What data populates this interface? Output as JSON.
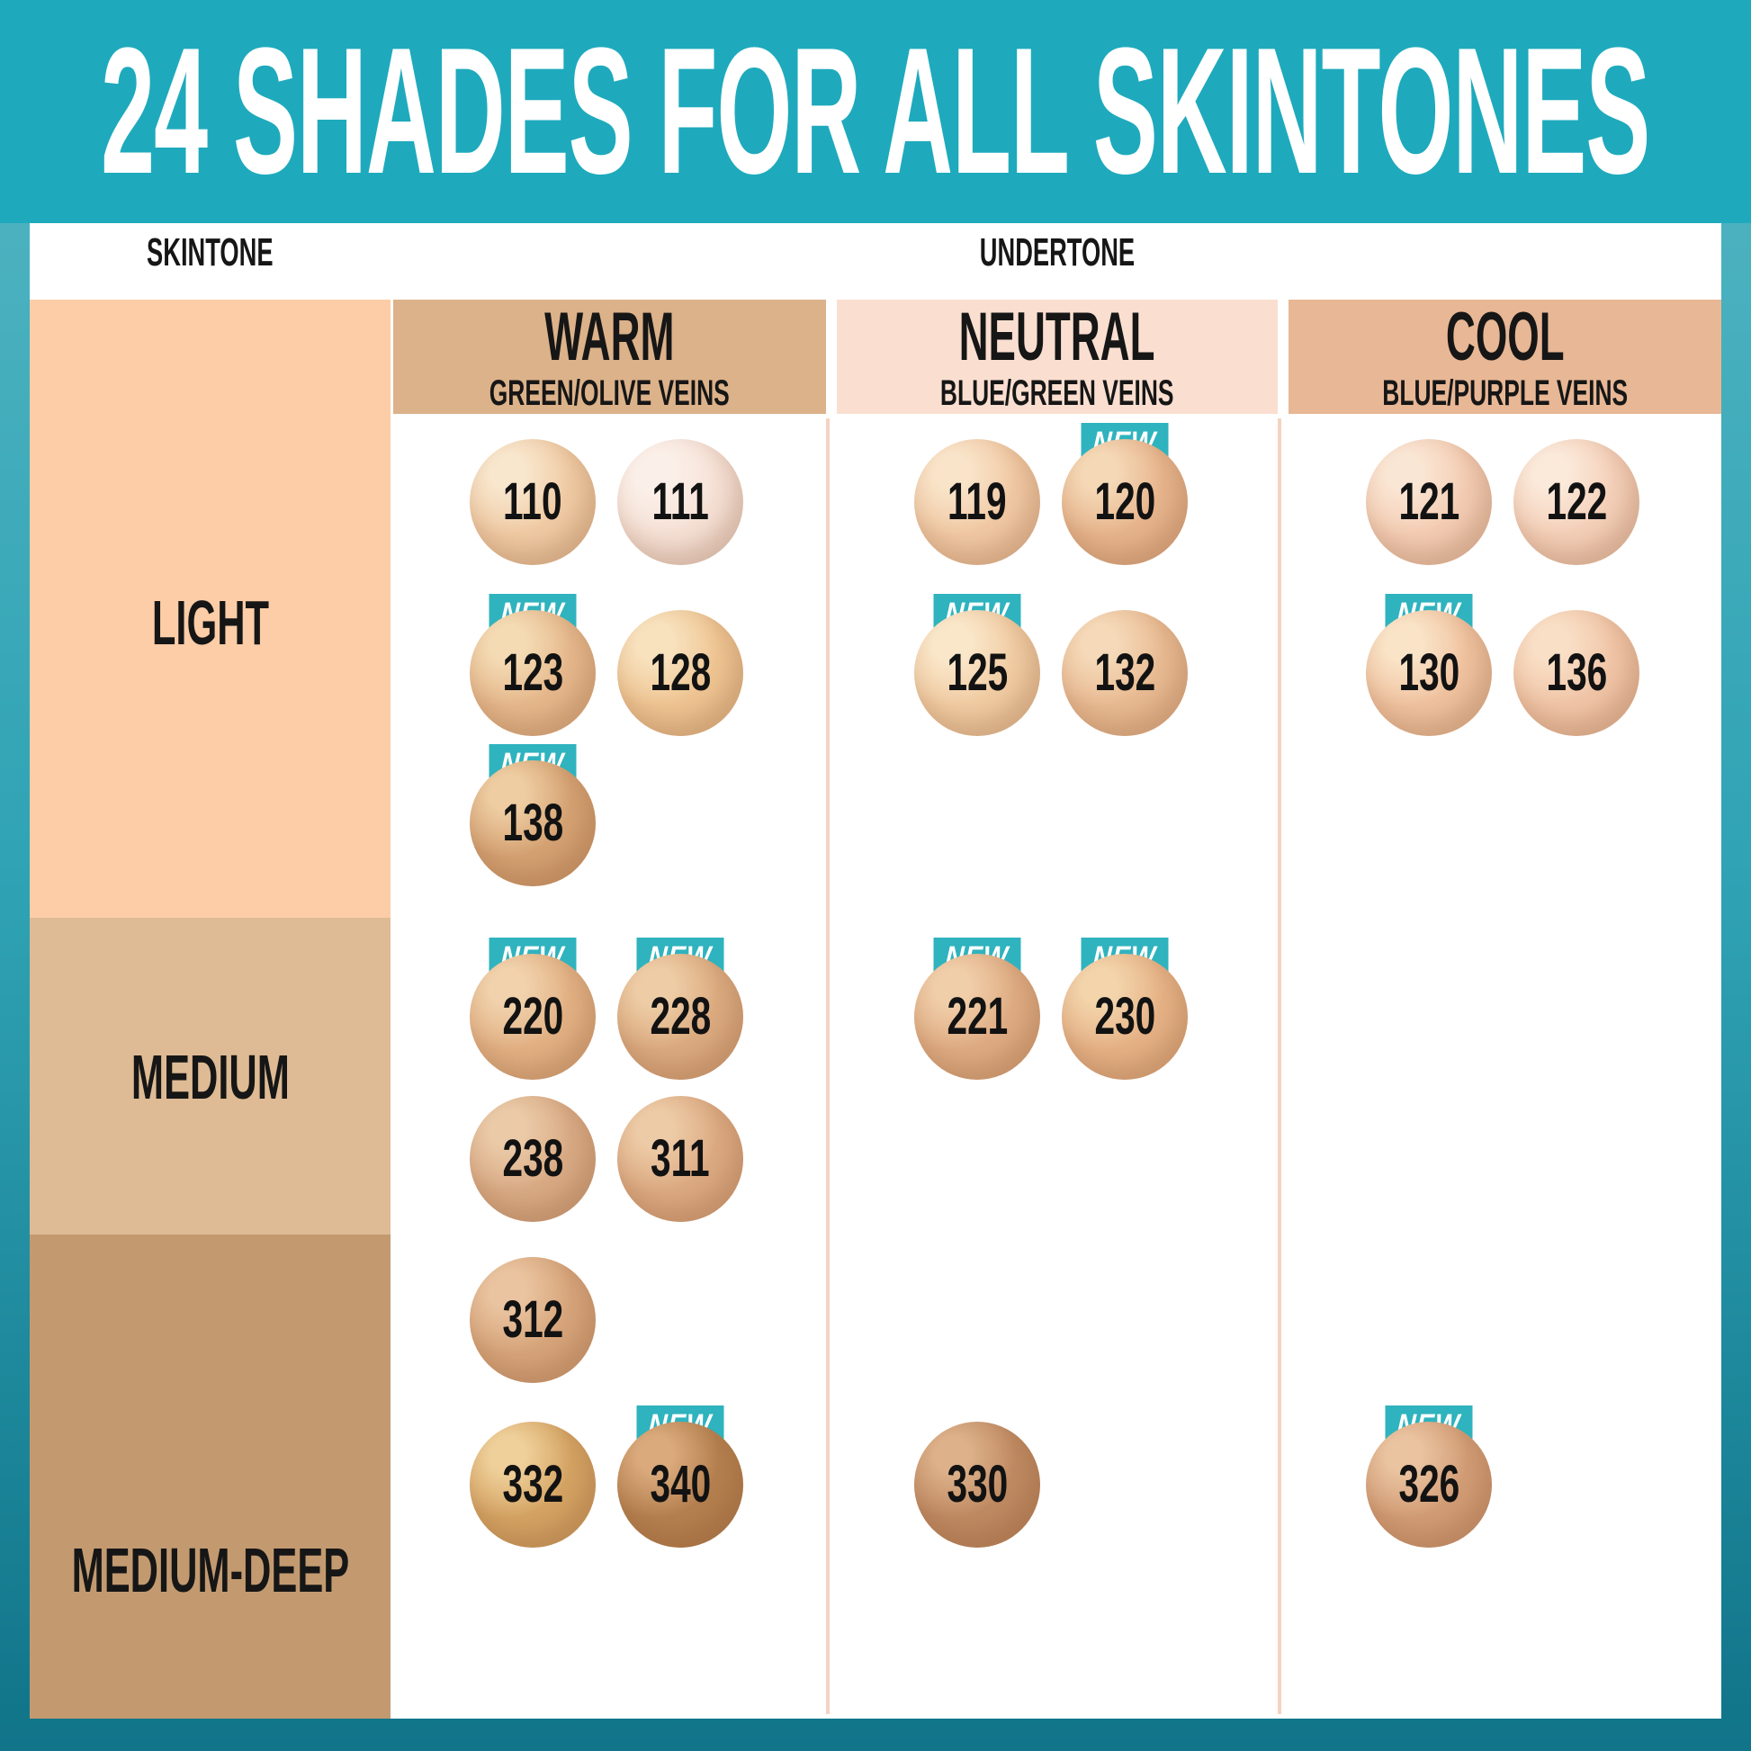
{
  "title": "24 SHADES FOR ALL SKINTONES",
  "axis_labels": {
    "skintone": "SKINTONE",
    "undertone": "UNDERTONE"
  },
  "badge_label": "NEW",
  "colors": {
    "band": "#1EAABC",
    "badge": "#2FB3BE",
    "divider": "#F5D3C3",
    "panel": "#FFFFFF",
    "text": "#161616",
    "page_top": "#55B6C3",
    "page_mid": "#2FA3B4",
    "page_bottom": "#117489"
  },
  "columns": [
    {
      "id": "warm",
      "label": "WARM",
      "sub": "GREEN/OLIVE VEINS",
      "header_bg": "#DCB28A"
    },
    {
      "id": "neutral",
      "label": "NEUTRAL",
      "sub": "BLUE/GREEN VEINS",
      "header_bg": "#FADFD0"
    },
    {
      "id": "cool",
      "label": "COOL",
      "sub": "BLUE/PURPLE VEINS",
      "header_bg": "#E8B795"
    }
  ],
  "rows": [
    {
      "id": "light",
      "label": "LIGHT",
      "bg": "#FCCDA7"
    },
    {
      "id": "medium",
      "label": "MEDIUM",
      "bg": "#DEBB94"
    },
    {
      "id": "medium-deep",
      "label": "MEDIUM-DEEP",
      "bg": "#C39A70"
    }
  ],
  "shades": [
    {
      "num": "110",
      "column": "warm",
      "col": 0,
      "row": 0,
      "new": false,
      "base": "#F0CBA4",
      "highlight": "#F8E6CD"
    },
    {
      "num": "111",
      "column": "warm",
      "col": 1,
      "row": 0,
      "new": false,
      "base": "#F6E1D6",
      "highlight": "#FBF0E9"
    },
    {
      "num": "123",
      "column": "warm",
      "col": 0,
      "row": 1,
      "new": true,
      "base": "#E6B88C",
      "highlight": "#F4DBB4"
    },
    {
      "num": "128",
      "column": "warm",
      "col": 1,
      "row": 1,
      "new": false,
      "base": "#EFC593",
      "highlight": "#F8E2BE"
    },
    {
      "num": "138",
      "column": "warm",
      "col": 0,
      "row": 2,
      "new": true,
      "base": "#D5A273",
      "highlight": "#EECDA2"
    },
    {
      "num": "220",
      "column": "warm",
      "col": 0,
      "row": 3,
      "new": true,
      "base": "#E2B184",
      "highlight": "#F1D2AC"
    },
    {
      "num": "228",
      "column": "warm",
      "col": 1,
      "row": 3,
      "new": true,
      "base": "#DCAB80",
      "highlight": "#EECDA6"
    },
    {
      "num": "238",
      "column": "warm",
      "col": 0,
      "row": 4,
      "new": false,
      "base": "#D9AB85",
      "highlight": "#EBCAA8"
    },
    {
      "num": "311",
      "column": "warm",
      "col": 1,
      "row": 4,
      "new": false,
      "base": "#DCAA82",
      "highlight": "#EDCBA6"
    },
    {
      "num": "312",
      "column": "warm",
      "col": 0,
      "row": 5,
      "new": false,
      "base": "#D7A57B",
      "highlight": "#EAC4A0"
    },
    {
      "num": "332",
      "column": "warm",
      "col": 0,
      "row": 6,
      "new": false,
      "base": "#D5A464",
      "highlight": "#EFD09A"
    },
    {
      "num": "340",
      "column": "warm",
      "col": 1,
      "row": 6,
      "new": true,
      "base": "#B5804F",
      "highlight": "#DAAA7C"
    },
    {
      "num": "119",
      "column": "neutral",
      "col": 0,
      "row": 0,
      "new": false,
      "base": "#F1C9A4",
      "highlight": "#F9E4C9"
    },
    {
      "num": "120",
      "column": "neutral",
      "col": 1,
      "row": 0,
      "new": true,
      "base": "#E7B58D",
      "highlight": "#F5D8B6"
    },
    {
      "num": "125",
      "column": "neutral",
      "col": 0,
      "row": 1,
      "new": true,
      "base": "#F1CCA3",
      "highlight": "#FAE7CA"
    },
    {
      "num": "132",
      "column": "neutral",
      "col": 1,
      "row": 1,
      "new": false,
      "base": "#E9BB93",
      "highlight": "#F5D9B8"
    },
    {
      "num": "221",
      "column": "neutral",
      "col": 0,
      "row": 3,
      "new": true,
      "base": "#DFAC83",
      "highlight": "#F0CEA9"
    },
    {
      "num": "230",
      "column": "neutral",
      "col": 1,
      "row": 3,
      "new": true,
      "base": "#E6B286",
      "highlight": "#F3D4AB"
    },
    {
      "num": "330",
      "column": "neutral",
      "col": 0,
      "row": 6,
      "new": false,
      "base": "#BF8A62",
      "highlight": "#DDB18A"
    },
    {
      "num": "121",
      "column": "cool",
      "col": 0,
      "row": 0,
      "new": false,
      "base": "#F4CDB4",
      "highlight": "#FAE6D4"
    },
    {
      "num": "122",
      "column": "cool",
      "col": 1,
      "row": 0,
      "new": false,
      "base": "#F5D0B9",
      "highlight": "#FBE9DA"
    },
    {
      "num": "130",
      "column": "cool",
      "col": 0,
      "row": 1,
      "new": true,
      "base": "#F0C3A0",
      "highlight": "#FAE4C8"
    },
    {
      "num": "136",
      "column": "cool",
      "col": 1,
      "row": 1,
      "new": false,
      "base": "#F1C5A7",
      "highlight": "#F9DFC6"
    },
    {
      "num": "326",
      "column": "cool",
      "col": 0,
      "row": 6,
      "new": true,
      "base": "#D29D76",
      "highlight": "#EAC3A0"
    }
  ]
}
